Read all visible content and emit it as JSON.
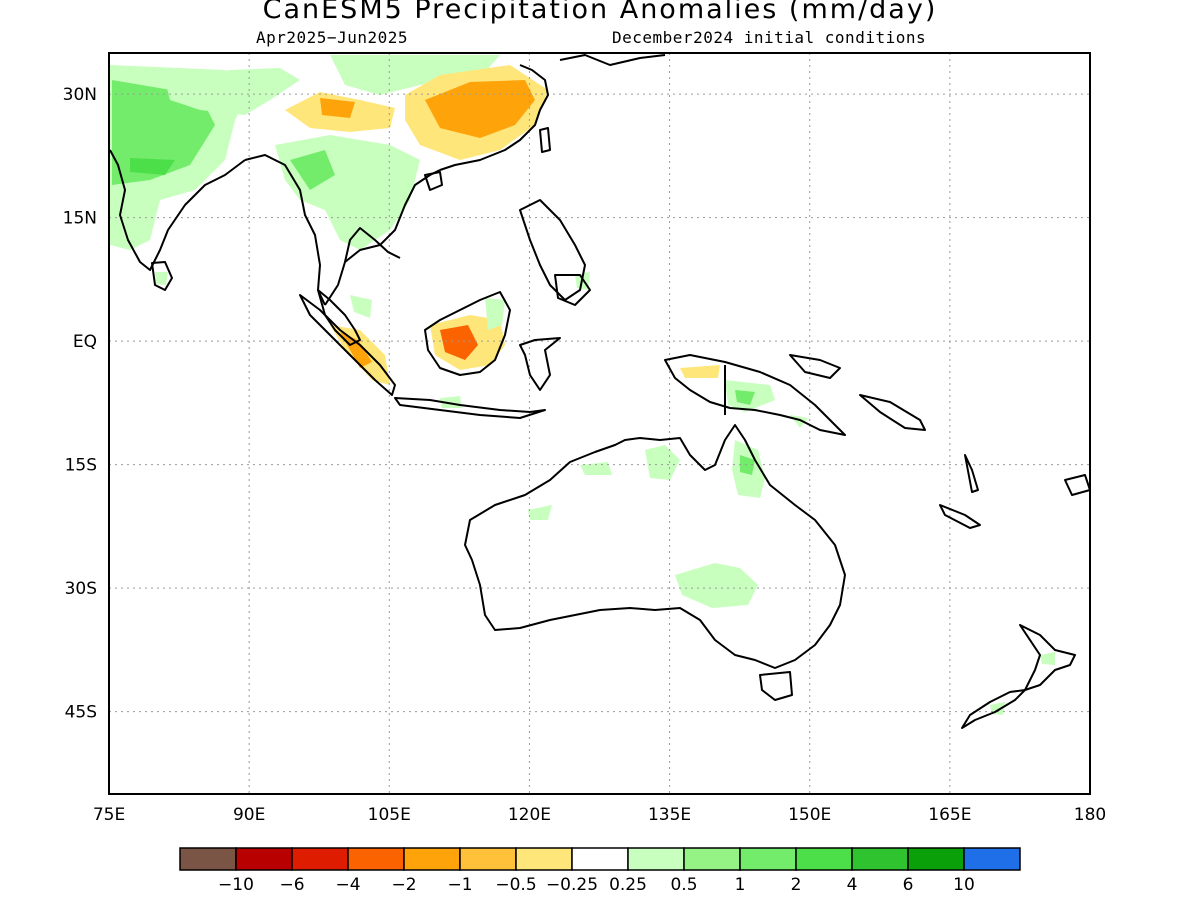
{
  "title": "CanESM5 Precipitation Anomalies (mm/day)",
  "period": "Apr2025−Jun2025",
  "init": "December2024 initial conditions",
  "map": {
    "lon_labels": [
      "75E",
      "90E",
      "105E",
      "120E",
      "135E",
      "150E",
      "165E",
      "180"
    ],
    "lat_labels": [
      "30N",
      "15N",
      "EQ",
      "15S",
      "30S",
      "45S"
    ],
    "lon_range": [
      75,
      180
    ],
    "lat_range": [
      -55,
      35
    ],
    "grid": "dotted",
    "anomaly_regions": [
      {
        "region": "India / Bay of Bengal",
        "class": "wet",
        "level": "0.5 to 2"
      },
      {
        "region": "Southeast Asia mainland",
        "class": "wet",
        "level": "0.5 to 1"
      },
      {
        "region": "Southern China",
        "class": "dry",
        "level": "-0.25 to -1"
      },
      {
        "region": "Tibetan Plateau edge",
        "class": "dry",
        "level": "-0.25 to -0.5"
      },
      {
        "region": "Sumatra",
        "class": "dry",
        "level": "-0.5 to -1"
      },
      {
        "region": "Borneo",
        "class": "dry",
        "level": "-0.5 to -2"
      },
      {
        "region": "Northern Australia / New Guinea",
        "class": "wet",
        "level": "0.25 to 1"
      },
      {
        "region": "Central Australia",
        "class": "wet",
        "level": "0.25 to 0.5"
      }
    ]
  },
  "legend": {
    "labels": [
      "−10",
      "−6",
      "−4",
      "−2",
      "−1",
      "−0.5",
      "−0.25",
      "0.25",
      "0.5",
      "1",
      "2",
      "4",
      "6",
      "10"
    ],
    "colors": [
      "#7a5545",
      "#b80000",
      "#dd1c00",
      "#fb6200",
      "#fea30a",
      "#ffc13a",
      "#ffe67a",
      "#ffffff",
      "#c8ffbe",
      "#95f285",
      "#72ec6a",
      "#4cdf4a",
      "#2fc32f",
      "#0aa00a",
      "#1e6fe8"
    ]
  }
}
